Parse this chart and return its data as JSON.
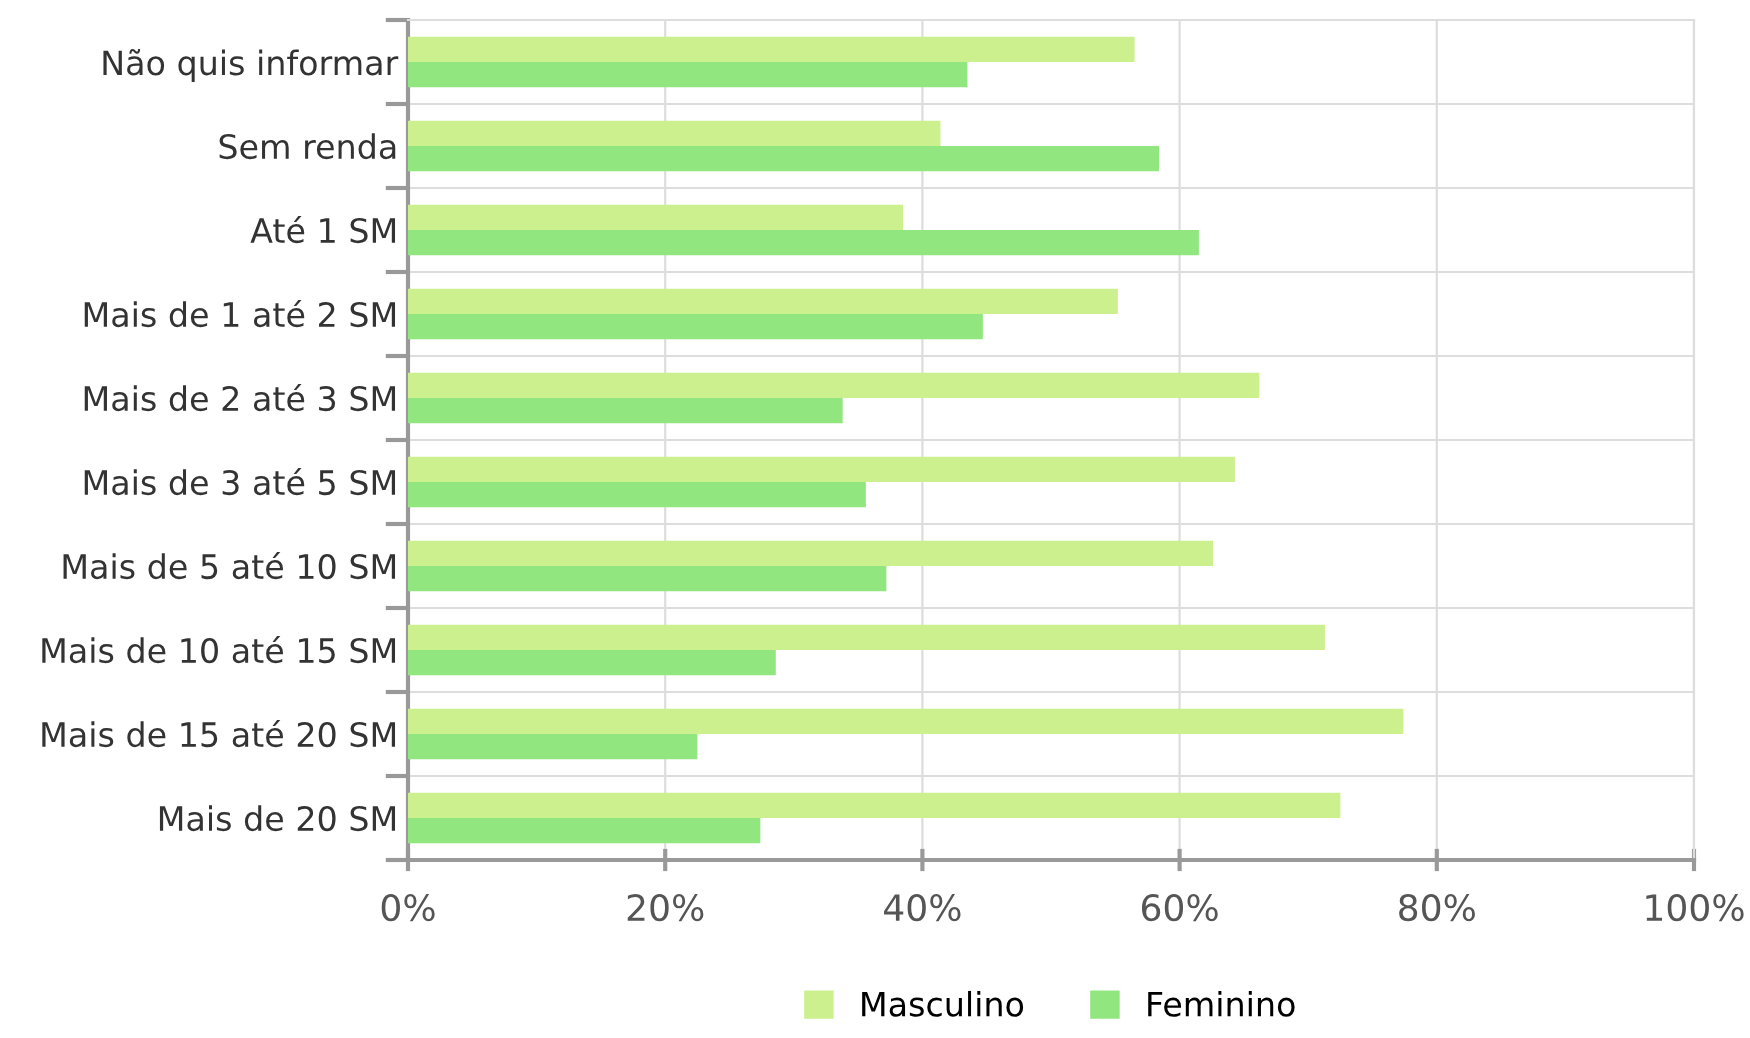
{
  "chart_data": {
    "type": "bar",
    "orientation": "horizontal",
    "categories": [
      "Não quis informar",
      "Sem renda",
      "Até 1 SM",
      "Mais de 1 até 2 SM",
      "Mais de 2 até 3 SM",
      "Mais de 3 até 5 SM",
      "Mais de 5 até 10 SM",
      "Mais de 10 até 15 SM",
      "Mais de 15 até 20 SM",
      "Mais de 20 SM"
    ],
    "series": [
      {
        "name": "Masculino",
        "color": "#ccf08e",
        "values": [
          56.5,
          41.4,
          38.5,
          55.2,
          66.2,
          64.3,
          62.6,
          71.3,
          77.4,
          72.5
        ]
      },
      {
        "name": "Feminino",
        "color": "#92e67f",
        "values": [
          43.5,
          58.4,
          61.5,
          44.7,
          33.8,
          35.6,
          37.2,
          28.6,
          22.5,
          27.4
        ]
      }
    ],
    "xlim": [
      0,
      100
    ],
    "xticks": [
      {
        "value": 0,
        "label": "0%"
      },
      {
        "value": 20,
        "label": "20%"
      },
      {
        "value": 40,
        "label": "40%"
      },
      {
        "value": 60,
        "label": "60%"
      },
      {
        "value": 80,
        "label": "80%"
      },
      {
        "value": 100,
        "label": "100%"
      }
    ],
    "grid": true,
    "legend": "bottom"
  }
}
